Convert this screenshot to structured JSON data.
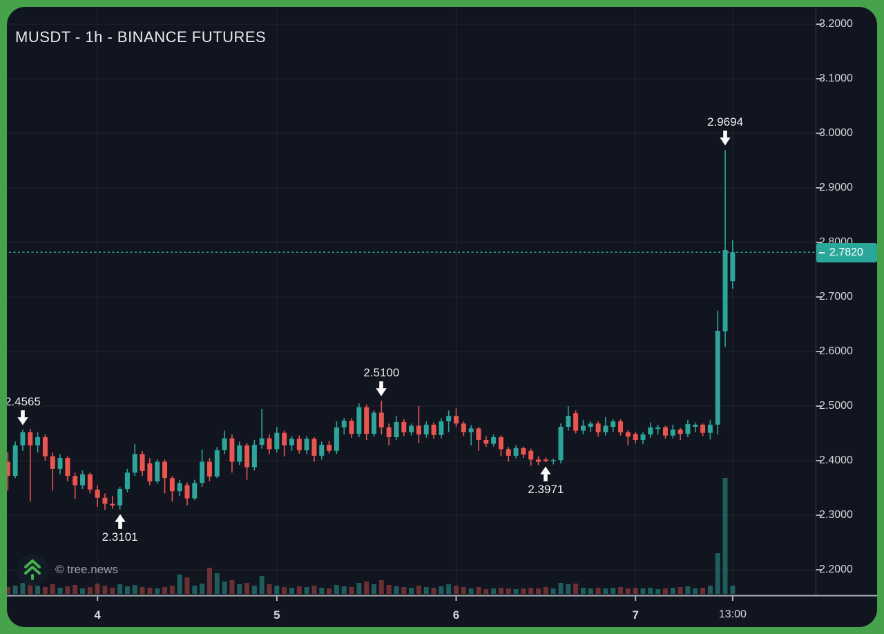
{
  "header": {
    "title": "MUSDT - 1h - BINANCE FUTURES"
  },
  "watermark": {
    "text": "© tree.news",
    "logo": "double-chevron-up-icon"
  },
  "price_line": {
    "label": "2.7820",
    "value": 2.782,
    "color": "#2aa79b",
    "style": "dotted"
  },
  "colors": {
    "background": "#10151f",
    "frame": "#47a24c",
    "up": "#2aa79b",
    "down": "#ef5350",
    "volume_up": "rgba(42,167,155,0.5)",
    "volume_down": "rgba(239,83,80,0.42)",
    "grid": "rgba(255,255,255,0.07)",
    "axis_line": "#b2b5be",
    "axis_border": "#3f434d",
    "logo_green": "#45b24b"
  },
  "y_axis": {
    "labels": [
      "3.2000",
      "3.1000",
      "3.0000",
      "2.9000",
      "2.8000",
      "2.7000",
      "2.6000",
      "2.5000",
      "2.4000",
      "2.3000",
      "2.2000"
    ],
    "values": [
      3.2,
      3.1,
      3.0,
      2.9,
      2.8,
      2.7,
      2.6,
      2.5,
      2.4,
      2.3,
      2.2
    ]
  },
  "x_axis": {
    "ticks": [
      {
        "label": "4",
        "index": 13,
        "type": "day"
      },
      {
        "label": "5",
        "index": 37,
        "type": "day"
      },
      {
        "label": "6",
        "index": 61,
        "type": "day"
      },
      {
        "label": "7",
        "index": 85,
        "type": "day"
      },
      {
        "label": "13:00",
        "index": 98,
        "type": "time"
      }
    ]
  },
  "annotations": [
    {
      "label": "2.4565",
      "price": 2.4565,
      "index": 3,
      "direction": "down"
    },
    {
      "label": "2.5100",
      "price": 2.51,
      "index": 51,
      "direction": "down"
    },
    {
      "label": "2.3101",
      "price": 2.3101,
      "index": 16,
      "direction": "up"
    },
    {
      "label": "2.3971",
      "price": 2.3971,
      "index": 73,
      "direction": "up"
    },
    {
      "label": "2.9694",
      "price": 2.9694,
      "index": 97,
      "direction": "down"
    }
  ],
  "chart_data": {
    "type": "candlestick",
    "symbol": "MUSDT",
    "interval": "1h",
    "exchange": "BINANCE FUTURES",
    "title": "MUSDT - 1h - BINANCE FUTURES",
    "last_price": 2.782,
    "marked_high": 2.9694,
    "marked_low": 2.3101,
    "price_range": [
      2.2,
      3.2
    ],
    "grid": true,
    "candle_fields": [
      "open",
      "high",
      "low",
      "close",
      "volume"
    ],
    "candles": [
      [
        2.345,
        2.405,
        2.335,
        2.398,
        14
      ],
      [
        2.398,
        2.415,
        2.345,
        2.372,
        10
      ],
      [
        2.372,
        2.435,
        2.368,
        2.428,
        12
      ],
      [
        2.428,
        2.4565,
        2.418,
        2.452,
        16
      ],
      [
        2.452,
        2.458,
        2.325,
        2.428,
        22
      ],
      [
        2.428,
        2.452,
        2.415,
        2.443,
        12
      ],
      [
        2.443,
        2.448,
        2.4,
        2.408,
        10
      ],
      [
        2.408,
        2.415,
        2.345,
        2.385,
        14
      ],
      [
        2.385,
        2.412,
        2.375,
        2.405,
        9
      ],
      [
        2.405,
        2.408,
        2.362,
        2.372,
        11
      ],
      [
        2.372,
        2.378,
        2.33,
        2.355,
        13
      ],
      [
        2.355,
        2.382,
        2.348,
        2.375,
        8
      ],
      [
        2.375,
        2.378,
        2.34,
        2.347,
        10
      ],
      [
        2.347,
        2.355,
        2.315,
        2.332,
        15
      ],
      [
        2.332,
        2.34,
        2.31,
        2.321,
        12
      ],
      [
        2.321,
        2.335,
        2.312,
        2.318,
        9
      ],
      [
        2.318,
        2.352,
        2.3101,
        2.348,
        14
      ],
      [
        2.348,
        2.385,
        2.342,
        2.378,
        11
      ],
      [
        2.378,
        2.43,
        2.372,
        2.412,
        13
      ],
      [
        2.412,
        2.418,
        2.372,
        2.381,
        10
      ],
      [
        2.395,
        2.405,
        2.355,
        2.362,
        9
      ],
      [
        2.362,
        2.402,
        2.358,
        2.398,
        8
      ],
      [
        2.398,
        2.402,
        2.34,
        2.368,
        10
      ],
      [
        2.368,
        2.372,
        2.325,
        2.344,
        12
      ],
      [
        2.344,
        2.365,
        2.335,
        2.359,
        28
      ],
      [
        2.355,
        2.36,
        2.318,
        2.331,
        24
      ],
      [
        2.331,
        2.365,
        2.328,
        2.359,
        12
      ],
      [
        2.359,
        2.42,
        2.352,
        2.398,
        15
      ],
      [
        2.398,
        2.405,
        2.362,
        2.371,
        38
      ],
      [
        2.371,
        2.425,
        2.368,
        2.419,
        30
      ],
      [
        2.419,
        2.455,
        2.412,
        2.441,
        18
      ],
      [
        2.441,
        2.448,
        2.378,
        2.398,
        20
      ],
      [
        2.398,
        2.435,
        2.392,
        2.428,
        14
      ],
      [
        2.428,
        2.432,
        2.365,
        2.388,
        16
      ],
      [
        2.388,
        2.438,
        2.382,
        2.429,
        12
      ],
      [
        2.429,
        2.495,
        2.422,
        2.441,
        26
      ],
      [
        2.441,
        2.448,
        2.412,
        2.421,
        14
      ],
      [
        2.421,
        2.462,
        2.415,
        2.451,
        12
      ],
      [
        2.451,
        2.455,
        2.408,
        2.428,
        10
      ],
      [
        2.428,
        2.445,
        2.418,
        2.44,
        9
      ],
      [
        2.44,
        2.446,
        2.413,
        2.419,
        11
      ],
      [
        2.419,
        2.445,
        2.412,
        2.44,
        10
      ],
      [
        2.44,
        2.443,
        2.398,
        2.409,
        12
      ],
      [
        2.409,
        2.435,
        2.402,
        2.429,
        9
      ],
      [
        2.429,
        2.436,
        2.413,
        2.418,
        8
      ],
      [
        2.418,
        2.472,
        2.412,
        2.461,
        13
      ],
      [
        2.461,
        2.478,
        2.448,
        2.473,
        11
      ],
      [
        2.473,
        2.478,
        2.442,
        2.449,
        10
      ],
      [
        2.449,
        2.505,
        2.443,
        2.498,
        16
      ],
      [
        2.498,
        2.503,
        2.438,
        2.449,
        18
      ],
      [
        2.449,
        2.492,
        2.444,
        2.488,
        14
      ],
      [
        2.488,
        2.51,
        2.448,
        2.461,
        20
      ],
      [
        2.461,
        2.468,
        2.428,
        2.443,
        13
      ],
      [
        2.443,
        2.482,
        2.438,
        2.471,
        11
      ],
      [
        2.471,
        2.476,
        2.445,
        2.452,
        10
      ],
      [
        2.452,
        2.468,
        2.446,
        2.464,
        9
      ],
      [
        2.464,
        2.5,
        2.432,
        2.448,
        12
      ],
      [
        2.448,
        2.472,
        2.442,
        2.466,
        10
      ],
      [
        2.466,
        2.47,
        2.44,
        2.447,
        9
      ],
      [
        2.447,
        2.478,
        2.441,
        2.472,
        11
      ],
      [
        2.472,
        2.492,
        2.452,
        2.482,
        14
      ],
      [
        2.482,
        2.496,
        2.462,
        2.468,
        12
      ],
      [
        2.468,
        2.472,
        2.445,
        2.452,
        10
      ],
      [
        2.452,
        2.465,
        2.428,
        2.459,
        8
      ],
      [
        2.459,
        2.462,
        2.418,
        2.438,
        10
      ],
      [
        2.438,
        2.445,
        2.425,
        2.431,
        7
      ],
      [
        2.431,
        2.448,
        2.426,
        2.443,
        8
      ],
      [
        2.443,
        2.446,
        2.408,
        2.421,
        9
      ],
      [
        2.421,
        2.425,
        2.398,
        2.409,
        8
      ],
      [
        2.409,
        2.428,
        2.404,
        2.423,
        7
      ],
      [
        2.423,
        2.426,
        2.405,
        2.411,
        8
      ],
      [
        2.418,
        2.422,
        2.39,
        2.402,
        9
      ],
      [
        2.402,
        2.408,
        2.392,
        2.398,
        8
      ],
      [
        2.402,
        2.406,
        2.3971,
        2.399,
        10
      ],
      [
        2.399,
        2.404,
        2.393,
        2.401,
        8
      ],
      [
        2.401,
        2.468,
        2.395,
        2.462,
        16
      ],
      [
        2.462,
        2.5,
        2.455,
        2.482,
        14
      ],
      [
        2.487,
        2.492,
        2.45,
        2.455,
        15
      ],
      [
        2.455,
        2.475,
        2.448,
        2.464,
        9
      ],
      [
        2.462,
        2.472,
        2.452,
        2.468,
        8
      ],
      [
        2.468,
        2.472,
        2.444,
        2.452,
        9
      ],
      [
        2.452,
        2.48,
        2.446,
        2.464,
        8
      ],
      [
        2.462,
        2.476,
        2.452,
        2.472,
        9
      ],
      [
        2.472,
        2.476,
        2.446,
        2.452,
        10
      ],
      [
        2.452,
        2.456,
        2.428,
        2.444,
        8
      ],
      [
        2.449,
        2.453,
        2.432,
        2.438,
        9
      ],
      [
        2.438,
        2.452,
        2.43,
        2.448,
        8
      ],
      [
        2.448,
        2.47,
        2.442,
        2.461,
        9
      ],
      [
        2.458,
        2.466,
        2.448,
        2.461,
        7
      ],
      [
        2.461,
        2.464,
        2.44,
        2.446,
        8
      ],
      [
        2.446,
        2.466,
        2.441,
        2.457,
        9
      ],
      [
        2.457,
        2.46,
        2.438,
        2.449,
        10
      ],
      [
        2.449,
        2.475,
        2.443,
        2.467,
        11
      ],
      [
        2.462,
        2.47,
        2.452,
        2.466,
        8
      ],
      [
        2.466,
        2.468,
        2.445,
        2.451,
        9
      ],
      [
        2.451,
        2.475,
        2.439,
        2.466,
        12
      ],
      [
        2.466,
        2.675,
        2.448,
        2.638,
        59
      ],
      [
        2.637,
        2.9694,
        2.608,
        2.786,
        168
      ],
      [
        2.729,
        2.804,
        2.715,
        2.782,
        12
      ]
    ]
  }
}
